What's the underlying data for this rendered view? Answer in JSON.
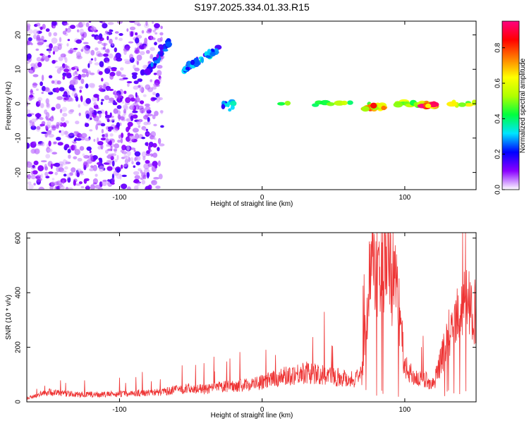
{
  "title": "S197.2025.334.01.33.R15",
  "chart_data": [
    {
      "type": "heatmap",
      "xlabel": "Height of straight line (km)",
      "ylabel": "Frequency (Hz)",
      "xlim": [
        -165,
        150
      ],
      "ylim": [
        -25,
        24
      ],
      "xticks": [
        "-100",
        "0",
        "100"
      ],
      "yticks": [
        "20",
        "10",
        "0",
        "-10",
        "-20"
      ],
      "colorbar": {
        "label": "Normalized spectral amplitude",
        "range": [
          0,
          0.95
        ],
        "ticks": [
          "0.0",
          "0.2",
          "0.4",
          "0.6",
          "0.8"
        ],
        "colors": [
          "#ffffff",
          "#8a00ff",
          "#0000ff",
          "#00e5ff",
          "#00ff40",
          "#b0ff00",
          "#ffff00",
          "#ff8000",
          "#ff0000",
          "#ff0080"
        ]
      },
      "features": [
        {
          "name": "broadband noise",
          "x_range": [
            -165,
            -70
          ],
          "freq_range": [
            -25,
            24
          ],
          "amplitude": 0.1
        },
        {
          "name": "rising streak",
          "x_range": [
            -82,
            -65
          ],
          "freq_range": [
            8,
            18
          ],
          "amplitude": 0.25
        },
        {
          "name": "rising streak",
          "x_range": [
            -55,
            -30
          ],
          "freq_range": [
            10,
            16
          ],
          "amplitude": 0.3
        },
        {
          "name": "patch",
          "x_range": [
            -30,
            -18
          ],
          "freq_range": [
            -2,
            1
          ],
          "amplitude": 0.3
        },
        {
          "name": "carrier line",
          "x_range": [
            5,
            150
          ],
          "freq_range": [
            -1,
            1
          ],
          "amplitude": 0.6
        },
        {
          "name": "carrier peak",
          "x_range": [
            72,
            86
          ],
          "freq_range": [
            -2,
            0
          ],
          "amplitude": 0.85
        },
        {
          "name": "carrier peak",
          "x_range": [
            112,
            122
          ],
          "freq_range": [
            -1,
            0
          ],
          "amplitude": 0.9
        }
      ]
    },
    {
      "type": "line",
      "xlabel": "Height of straight line (km)",
      "ylabel": "SNR (10 * v/v)",
      "xlim": [
        -165,
        150
      ],
      "ylim": [
        0,
        620
      ],
      "xticks": [
        "-100",
        "0",
        "100"
      ],
      "yticks": [
        "600",
        "400",
        "200",
        "0"
      ],
      "color": "#ee3333",
      "series": [
        {
          "name": "SNR",
          "x": [
            -165,
            -150,
            -130,
            -110,
            -90,
            -70,
            -60,
            -50,
            -40,
            -30,
            -20,
            -10,
            0,
            10,
            20,
            30,
            40,
            50,
            60,
            65,
            70,
            75,
            78,
            82,
            86,
            90,
            95,
            100,
            105,
            110,
            115,
            120,
            125,
            130,
            135,
            140,
            145,
            150
          ],
          "y": [
            15,
            40,
            30,
            30,
            35,
            40,
            50,
            55,
            50,
            60,
            65,
            70,
            80,
            95,
            110,
            120,
            110,
            105,
            95,
            90,
            110,
            470,
            560,
            530,
            580,
            520,
            430,
            140,
            110,
            90,
            90,
            70,
            160,
            260,
            330,
            380,
            400,
            360
          ]
        }
      ]
    }
  ]
}
